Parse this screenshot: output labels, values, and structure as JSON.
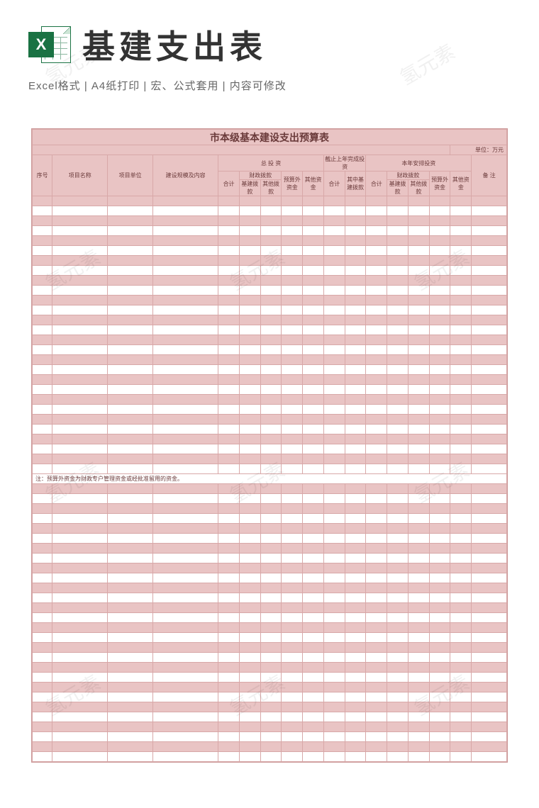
{
  "header": {
    "main_title": "基建支出表",
    "subtitle": "Excel格式 |  A4纸打印 | 宏、公式套用 | 内容可修改",
    "icon_letter": "X"
  },
  "sheet": {
    "title": "市本级基本建设支出预算表",
    "unit_label": "单位：万元",
    "columns": {
      "c1": "序号",
      "c2": "项目名称",
      "c3": "项目单位",
      "c4": "建设规模及内容",
      "g1": "总 投 资",
      "g2": "截止上年完成投资",
      "g3": "本年安排投资",
      "c_last": "备 注",
      "sub_total": "合计",
      "sub_fin": "财政拨款",
      "sub_fin_a": "基建拨款",
      "sub_fin_b": "其他拨款",
      "sub_out": "预算外资金",
      "sub_other": "其他资金",
      "g2_sub": "其中基建拨款"
    },
    "note": "注：预算外资金为财政专户管理资金或经批准留用的资金。",
    "colors": {
      "pink": "#e9c4c4",
      "border": "#d8a8a8",
      "text": "#6a3a3a"
    },
    "rows_before_note": 28,
    "rows_after_note": 28
  },
  "watermark": "氢元素"
}
